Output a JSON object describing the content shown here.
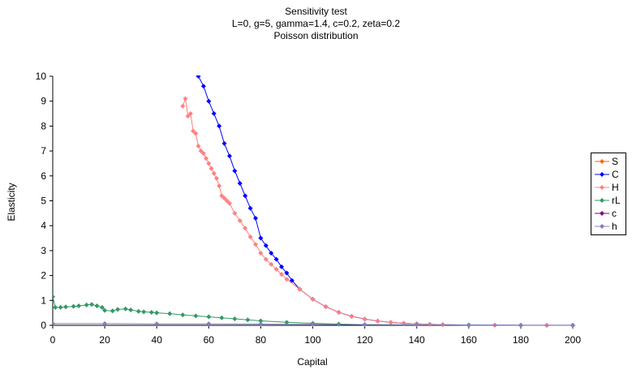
{
  "chart_data": {
    "type": "line",
    "title": "Sensitivity test",
    "subtitle_lines": [
      "L=0, g=5, gamma=1.4, c=0.2, zeta=0.2",
      "Poisson distribution"
    ],
    "xlabel": "Capital",
    "ylabel": "Elasticity",
    "xlim": [
      0,
      200
    ],
    "ylim": [
      0,
      10
    ],
    "xticks": [
      0,
      20,
      40,
      60,
      80,
      100,
      120,
      140,
      160,
      180,
      200
    ],
    "yticks": [
      0,
      1,
      2,
      3,
      4,
      5,
      6,
      7,
      8,
      9,
      10
    ],
    "grid": false,
    "legend_position": "right",
    "series": [
      {
        "name": "S",
        "color": "#ff6600",
        "marker": "diamond",
        "x": [],
        "y": []
      },
      {
        "name": "C",
        "color": "#0000ff",
        "marker": "diamond",
        "x": [
          56,
          58,
          60,
          62,
          64,
          66,
          68,
          70,
          72,
          74,
          76,
          78,
          80,
          82,
          84,
          86,
          88,
          90,
          92,
          95,
          100,
          105,
          110,
          115,
          120,
          125,
          130,
          135,
          140,
          145,
          150,
          160,
          170,
          180,
          190,
          200
        ],
        "y": [
          10.0,
          9.6,
          9.0,
          8.5,
          8.0,
          7.3,
          6.8,
          6.2,
          5.7,
          5.2,
          4.7,
          4.3,
          3.5,
          3.2,
          2.9,
          2.65,
          2.35,
          2.1,
          1.8,
          1.45,
          1.05,
          0.75,
          0.52,
          0.36,
          0.25,
          0.17,
          0.12,
          0.08,
          0.06,
          0.04,
          0.03,
          0.01,
          0.01,
          0.0,
          0.0,
          0.0
        ]
      },
      {
        "name": "H",
        "color": "#ff8080",
        "marker": "diamond",
        "x": [
          50,
          51,
          52,
          53,
          54,
          55,
          56,
          57,
          58,
          59,
          60,
          61,
          62,
          63,
          64,
          65,
          66,
          67,
          68,
          70,
          72,
          74,
          76,
          78,
          80,
          82,
          84,
          86,
          88,
          90,
          95,
          100,
          105,
          110,
          115,
          120,
          125,
          130,
          135,
          140,
          145,
          150,
          160,
          170,
          180,
          190,
          200
        ],
        "y": [
          8.8,
          9.1,
          8.4,
          8.5,
          7.8,
          7.7,
          7.2,
          7.0,
          6.9,
          6.7,
          6.5,
          6.3,
          6.1,
          5.9,
          5.6,
          5.2,
          5.1,
          5.0,
          4.9,
          4.5,
          4.2,
          3.9,
          3.55,
          3.25,
          2.9,
          2.65,
          2.45,
          2.25,
          2.05,
          1.85,
          1.45,
          1.05,
          0.75,
          0.52,
          0.36,
          0.25,
          0.17,
          0.12,
          0.08,
          0.06,
          0.04,
          0.03,
          0.01,
          0.01,
          0.0,
          0.0,
          0.0
        ]
      },
      {
        "name": "rL",
        "color": "#339966",
        "marker": "diamond",
        "x": [
          0,
          1,
          3,
          5,
          8,
          10,
          13,
          15,
          17,
          19,
          20,
          23,
          25,
          28,
          30,
          33,
          35,
          38,
          40,
          45,
          50,
          55,
          60,
          65,
          70,
          75,
          80,
          90,
          100,
          110,
          120,
          140,
          160,
          180,
          200
        ],
        "y": [
          1.15,
          0.72,
          0.72,
          0.74,
          0.76,
          0.78,
          0.82,
          0.84,
          0.78,
          0.72,
          0.6,
          0.58,
          0.64,
          0.66,
          0.62,
          0.56,
          0.54,
          0.52,
          0.5,
          0.47,
          0.42,
          0.38,
          0.34,
          0.3,
          0.26,
          0.22,
          0.18,
          0.12,
          0.08,
          0.05,
          0.03,
          0.02,
          0.01,
          0.0,
          0.0
        ]
      },
      {
        "name": "c",
        "color": "#800080",
        "marker": "diamond",
        "x": [],
        "y": []
      },
      {
        "name": "h",
        "color": "#8080c0",
        "marker": "diamond",
        "x": [
          0,
          20,
          40,
          60,
          80,
          100,
          120,
          140,
          160,
          180,
          200
        ],
        "y": [
          0.07,
          0.07,
          0.06,
          0.06,
          0.05,
          0.04,
          0.03,
          0.02,
          0.02,
          0.01,
          0.01
        ]
      }
    ]
  }
}
